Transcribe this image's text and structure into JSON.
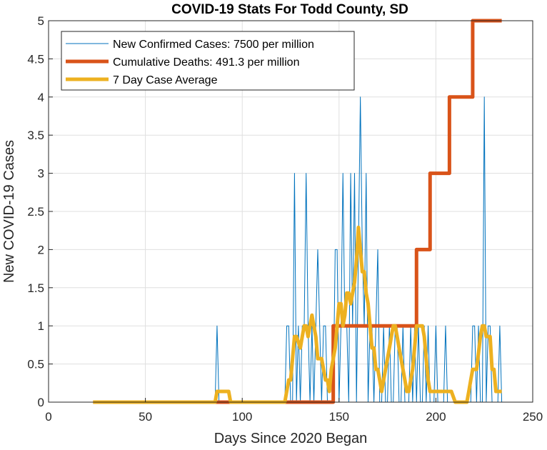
{
  "chart_data": {
    "type": "line",
    "title": "COVID-19 Stats For Todd County, SD",
    "xlabel": "Days Since 2020 Began",
    "ylabel": "New COVID-19 Cases",
    "xlim": [
      0,
      250
    ],
    "ylim": [
      0,
      5
    ],
    "xticks": [
      0,
      50,
      100,
      150,
      200,
      250
    ],
    "yticks": [
      0,
      0.5,
      1,
      1.5,
      2,
      2.5,
      3,
      3.5,
      4,
      4.5,
      5
    ],
    "xtick_labels": [
      "0",
      "50",
      "100",
      "150",
      "200",
      "250"
    ],
    "ytick_labels": [
      "0",
      "0.5",
      "1",
      "1.5",
      "2",
      "2.5",
      "3",
      "3.5",
      "4",
      "4.5",
      "5"
    ],
    "grid": true,
    "legend_position": "top-left",
    "series": [
      {
        "name": "New Confirmed Cases: 7500 per million",
        "color": "#0072bd",
        "x": [
          23,
          86,
          87,
          88,
          122,
          123,
          124,
          125,
          126,
          127,
          128,
          129,
          130,
          131,
          132,
          133,
          134,
          135,
          136,
          137,
          138,
          139,
          140,
          141,
          142,
          143,
          144,
          145,
          146,
          147,
          148,
          149,
          150,
          151,
          152,
          153,
          154,
          155,
          156,
          157,
          158,
          159,
          160,
          161,
          162,
          163,
          164,
          165,
          166,
          167,
          168,
          169,
          170,
          171,
          172,
          173,
          174,
          175,
          176,
          177,
          178,
          179,
          180,
          181,
          182,
          183,
          184,
          185,
          186,
          187,
          188,
          189,
          190,
          191,
          192,
          193,
          194,
          195,
          196,
          197,
          198,
          199,
          200,
          201,
          202,
          203,
          204,
          205,
          206,
          207,
          208,
          209,
          210,
          211,
          212,
          213,
          214,
          215,
          216,
          217,
          218,
          219,
          220,
          221,
          222,
          223,
          224,
          225,
          226,
          227,
          228,
          229,
          230,
          231,
          232,
          233,
          234
        ],
        "y": [
          0,
          0,
          1,
          0,
          0,
          1,
          1,
          0,
          0,
          3,
          0,
          1,
          0,
          1,
          1,
          3,
          1,
          0,
          1,
          0,
          1,
          2,
          1,
          0,
          1,
          1,
          0,
          0,
          0,
          0,
          2,
          2,
          0,
          1,
          3,
          1,
          1,
          0,
          3,
          1,
          3,
          0,
          2,
          4,
          2,
          1,
          3,
          0,
          1,
          1,
          0,
          1,
          2,
          0,
          0,
          1,
          0,
          0,
          1,
          0,
          0,
          1,
          1,
          0,
          0,
          1,
          0,
          0,
          0,
          1,
          0,
          1,
          0,
          1,
          0,
          0,
          1,
          0,
          1,
          0,
          0,
          0,
          1,
          0,
          0,
          0,
          0,
          1,
          0,
          0,
          0,
          0,
          0,
          0,
          0,
          0,
          0,
          0,
          0,
          0,
          0,
          1,
          1,
          0,
          1,
          0,
          0,
          4,
          0,
          1,
          1,
          0,
          0,
          0,
          0,
          1,
          0
        ]
      },
      {
        "name": "Cumulative Deaths: 491.3 per million",
        "color": "#d95319",
        "x": [
          23,
          147,
          147,
          190,
          190,
          197,
          197,
          207,
          207,
          219,
          219,
          234
        ],
        "y": [
          0,
          0,
          1,
          1,
          2,
          2,
          3,
          3,
          4,
          4,
          5,
          5
        ]
      },
      {
        "name": "7 Day Case Average",
        "color": "#edb120",
        "x": [
          23,
          86,
          87,
          93,
          94,
          122,
          124,
          125,
          126,
          127,
          128,
          130,
          131,
          132,
          133,
          134,
          135,
          136,
          137,
          138,
          139,
          140,
          141,
          142,
          143,
          144,
          145,
          146,
          148,
          149,
          150,
          151,
          152,
          153,
          154,
          155,
          156,
          158,
          159,
          160,
          161,
          162,
          163,
          164,
          165,
          166,
          167,
          168,
          169,
          170,
          171,
          172,
          173,
          174,
          175,
          176,
          177,
          178,
          179,
          180,
          181,
          182,
          183,
          184,
          185,
          186,
          187,
          188,
          189,
          190,
          191,
          192,
          193,
          194,
          195,
          196,
          197,
          198,
          199,
          200,
          203,
          208,
          210,
          211,
          216,
          217,
          218,
          219,
          220,
          221,
          223,
          224,
          225,
          226,
          227,
          228,
          229,
          230,
          231,
          232,
          233,
          234
        ],
        "y": [
          0,
          0,
          0.14,
          0.14,
          0,
          0,
          0.29,
          0.29,
          0.57,
          0.86,
          0.86,
          0.71,
          0.86,
          1.0,
          1.0,
          0.86,
          1.0,
          1.14,
          1.0,
          0.86,
          0.57,
          0.57,
          0.57,
          0.43,
          0.29,
          0.29,
          0.14,
          0.43,
          0.71,
          1.0,
          1.29,
          1.29,
          1.0,
          1.14,
          1.43,
          1.43,
          1.29,
          1.57,
          1.86,
          2.29,
          2.0,
          1.71,
          1.71,
          1.43,
          1.29,
          1.0,
          0.71,
          0.71,
          0.43,
          0.43,
          0.29,
          0.14,
          0.29,
          0.43,
          0.57,
          0.71,
          0.86,
          1.0,
          1.0,
          0.86,
          0.71,
          0.57,
          0.43,
          0.29,
          0.14,
          0.14,
          0.29,
          0.43,
          0.71,
          1.0,
          1.0,
          1.0,
          1.0,
          0.86,
          0.57,
          0.29,
          0.14,
          0.14,
          0.14,
          0.14,
          0.14,
          0.14,
          0.0,
          0.0,
          0.0,
          0.14,
          0.29,
          0.43,
          0.43,
          0.43,
          0.86,
          1.0,
          1.0,
          0.86,
          0.86,
          0.86,
          0.43,
          0.43,
          0.14,
          0.14,
          0.14,
          0.14
        ]
      }
    ]
  }
}
